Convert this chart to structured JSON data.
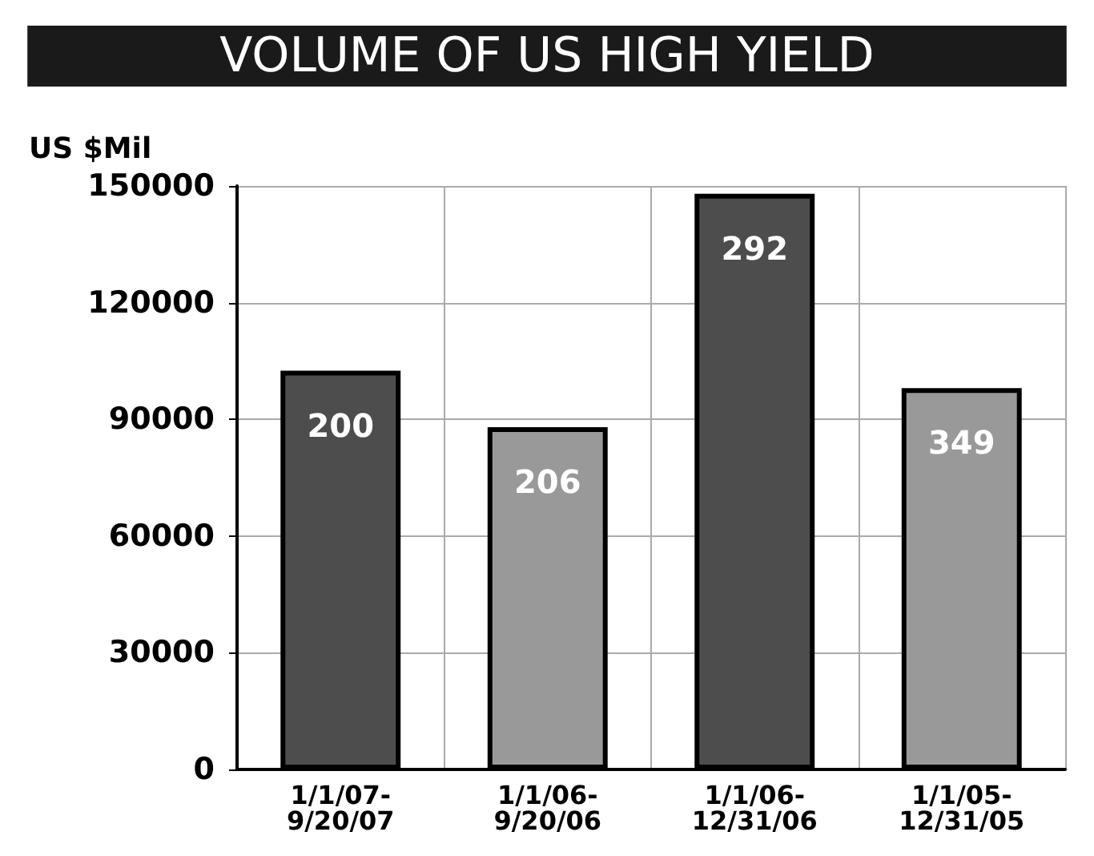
{
  "chart_data": {
    "type": "bar",
    "title": "VOLUME OF US HIGH YIELD",
    "ylabel": "US $Mil",
    "categories": [
      "1/1/07-\n9/20/07",
      "1/1/06-\n9/20/06",
      "1/1/06-\n12/31/06",
      "1/1/05-\n12/31/05"
    ],
    "values": [
      102500,
      88000,
      148000,
      98000
    ],
    "colors": [
      "#4d4d4d",
      "#999999",
      "#4d4d4d",
      "#999999"
    ],
    "annotations": [
      "200",
      "206",
      "292",
      "349"
    ],
    "ylim": [
      0,
      150000
    ],
    "yticks": [
      0,
      30000,
      60000,
      90000,
      120000,
      150000
    ],
    "grid": true
  }
}
